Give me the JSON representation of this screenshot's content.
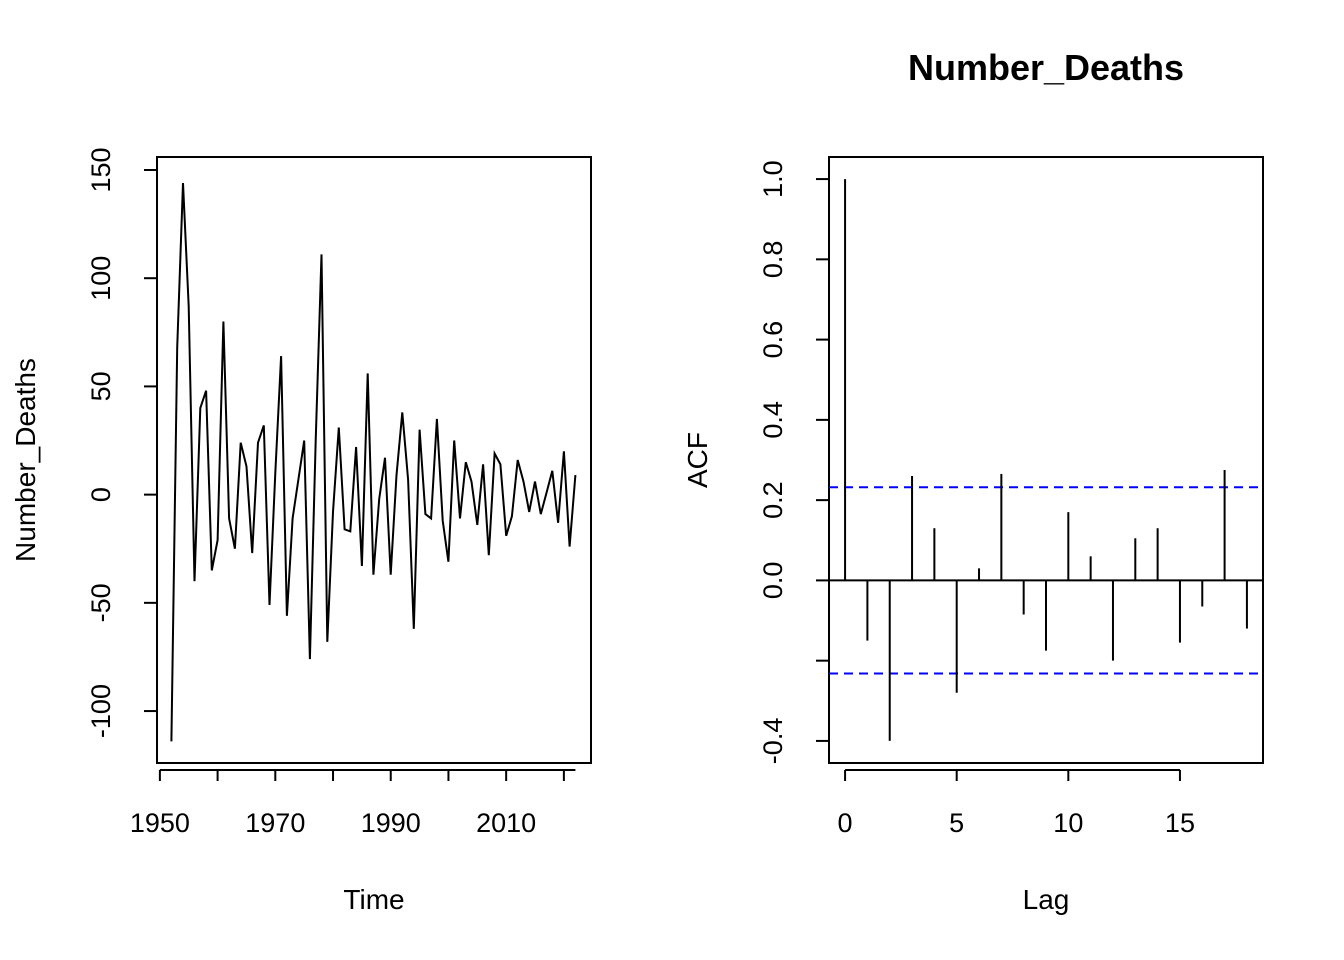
{
  "chart_data": [
    {
      "type": "line",
      "title": "",
      "xlabel": "Time",
      "ylabel": "Number_Deaths",
      "xlim": [
        1949.5,
        2024.7
      ],
      "ylim": [
        -124,
        156
      ],
      "xticks": [
        1950,
        1970,
        1990,
        2010
      ],
      "xtick_labels": [
        "1950",
        "1970",
        "1990",
        "2010"
      ],
      "yticks": [
        -100,
        -50,
        0,
        50,
        100,
        150
      ],
      "ytick_labels": [
        "-100",
        "-50",
        "0",
        "50",
        "100",
        "150"
      ],
      "grid": false,
      "color": "#000000",
      "x": [
        1952,
        1953,
        1954,
        1955,
        1956,
        1957,
        1958,
        1959,
        1960,
        1961,
        1962,
        1963,
        1964,
        1965,
        1966,
        1967,
        1968,
        1969,
        1970,
        1971,
        1972,
        1973,
        1974,
        1975,
        1976,
        1977,
        1978,
        1979,
        1980,
        1981,
        1982,
        1983,
        1984,
        1985,
        1986,
        1987,
        1988,
        1989,
        1990,
        1991,
        1992,
        1993,
        1994,
        1995,
        1996,
        1997,
        1998,
        1999,
        2000,
        2001,
        2002,
        2003,
        2004,
        2005,
        2006,
        2007,
        2008,
        2009,
        2010,
        2011,
        2012,
        2013,
        2014,
        2015,
        2016,
        2017,
        2018,
        2019,
        2020,
        2021,
        2022
      ],
      "y": [
        -114,
        68,
        144,
        87,
        -40,
        40,
        48,
        -35,
        -21,
        80,
        -11,
        -25,
        24,
        13,
        -27,
        24,
        32,
        -51,
        10,
        64,
        -56,
        -11,
        7,
        25,
        -76,
        25,
        111,
        -68,
        -8,
        31,
        -16,
        -17,
        22,
        -33,
        56,
        -37,
        -2,
        17,
        -37,
        9,
        38,
        7,
        -62,
        30,
        -9,
        -11,
        35,
        -12,
        -31,
        25,
        -11,
        15,
        6,
        -14,
        14,
        -28,
        19,
        14,
        -19,
        -10,
        16,
        6,
        -8,
        6,
        -9,
        1,
        11,
        -13,
        20,
        -24,
        9
      ]
    },
    {
      "type": "bar",
      "title": "Number_Deaths",
      "xlabel": "Lag",
      "ylabel": "ACF",
      "xlim": [
        -0.72,
        18.72
      ],
      "ylim": [
        -0.455,
        1.055
      ],
      "xticks": [
        0,
        5,
        10,
        15
      ],
      "xtick_labels": [
        "0",
        "5",
        "10",
        "15"
      ],
      "yticks": [
        -0.4,
        -0.2,
        0.0,
        0.2,
        0.4,
        0.6,
        0.8,
        1.0
      ],
      "ytick_labels": [
        "-0.4",
        "",
        "0.0",
        "0.2",
        "0.4",
        "0.6",
        "0.8",
        "1.0"
      ],
      "grid": false,
      "lags": [
        0,
        1,
        2,
        3,
        4,
        5,
        6,
        7,
        8,
        9,
        10,
        11,
        12,
        13,
        14,
        15,
        16,
        17,
        18
      ],
      "acf": [
        1.0,
        -0.15,
        -0.4,
        0.26,
        0.13,
        -0.28,
        0.03,
        0.265,
        -0.085,
        -0.175,
        0.17,
        0.06,
        -0.2,
        0.105,
        0.13,
        -0.155,
        -0.065,
        0.275,
        -0.12
      ],
      "confidence_bounds": [
        0.232,
        -0.232
      ],
      "bound_color": "#0000ff",
      "color": "#000000"
    }
  ]
}
